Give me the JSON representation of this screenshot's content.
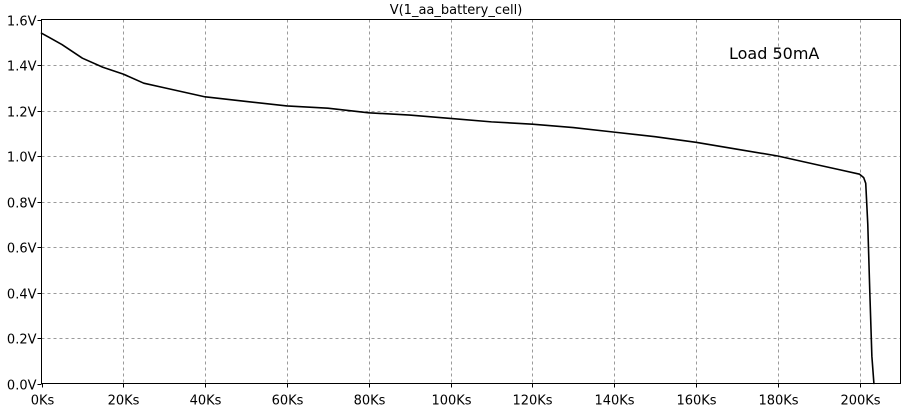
{
  "chart_data": {
    "type": "line",
    "title": "V(1_aa_battery_cell)",
    "xlabel": "",
    "ylabel": "",
    "xlim": [
      0,
      210000
    ],
    "ylim": [
      0,
      1.6
    ],
    "x_ticks": [
      {
        "value": 0,
        "label": "0Ks"
      },
      {
        "value": 20000,
        "label": "20Ks"
      },
      {
        "value": 40000,
        "label": "40Ks"
      },
      {
        "value": 60000,
        "label": "60Ks"
      },
      {
        "value": 80000,
        "label": "80Ks"
      },
      {
        "value": 100000,
        "label": "100Ks"
      },
      {
        "value": 120000,
        "label": "120Ks"
      },
      {
        "value": 140000,
        "label": "140Ks"
      },
      {
        "value": 160000,
        "label": "160Ks"
      },
      {
        "value": 180000,
        "label": "180Ks"
      },
      {
        "value": 200000,
        "label": "200Ks"
      }
    ],
    "y_ticks": [
      {
        "value": 0,
        "label": "0.0V"
      },
      {
        "value": 0.2,
        "label": "0.2V"
      },
      {
        "value": 0.4,
        "label": "0.4V"
      },
      {
        "value": 0.6,
        "label": "0.6V"
      },
      {
        "value": 0.8,
        "label": "0.8V"
      },
      {
        "value": 1.0,
        "label": "1.0V"
      },
      {
        "value": 1.2,
        "label": "1.2V"
      },
      {
        "value": 1.4,
        "label": "1.4V"
      },
      {
        "value": 1.6,
        "label": "1.6V"
      }
    ],
    "grid": true,
    "annotations": [
      {
        "text": "Load 50mA",
        "position": "top-right"
      }
    ],
    "series": [
      {
        "color": "#000000",
        "x": [
          0,
          2000,
          5000,
          10000,
          15000,
          20000,
          25000,
          30000,
          40000,
          50000,
          60000,
          70000,
          80000,
          90000,
          100000,
          110000,
          120000,
          130000,
          140000,
          150000,
          160000,
          170000,
          180000,
          190000,
          195000,
          200000,
          201000,
          201500,
          202000,
          202500,
          203000,
          203500
        ],
        "y": [
          1.54,
          1.52,
          1.49,
          1.43,
          1.39,
          1.36,
          1.32,
          1.3,
          1.26,
          1.24,
          1.22,
          1.21,
          1.19,
          1.18,
          1.165,
          1.15,
          1.14,
          1.125,
          1.105,
          1.085,
          1.06,
          1.03,
          1.0,
          0.96,
          0.94,
          0.92,
          0.905,
          0.88,
          0.7,
          0.4,
          0.12,
          0.0
        ]
      }
    ]
  }
}
